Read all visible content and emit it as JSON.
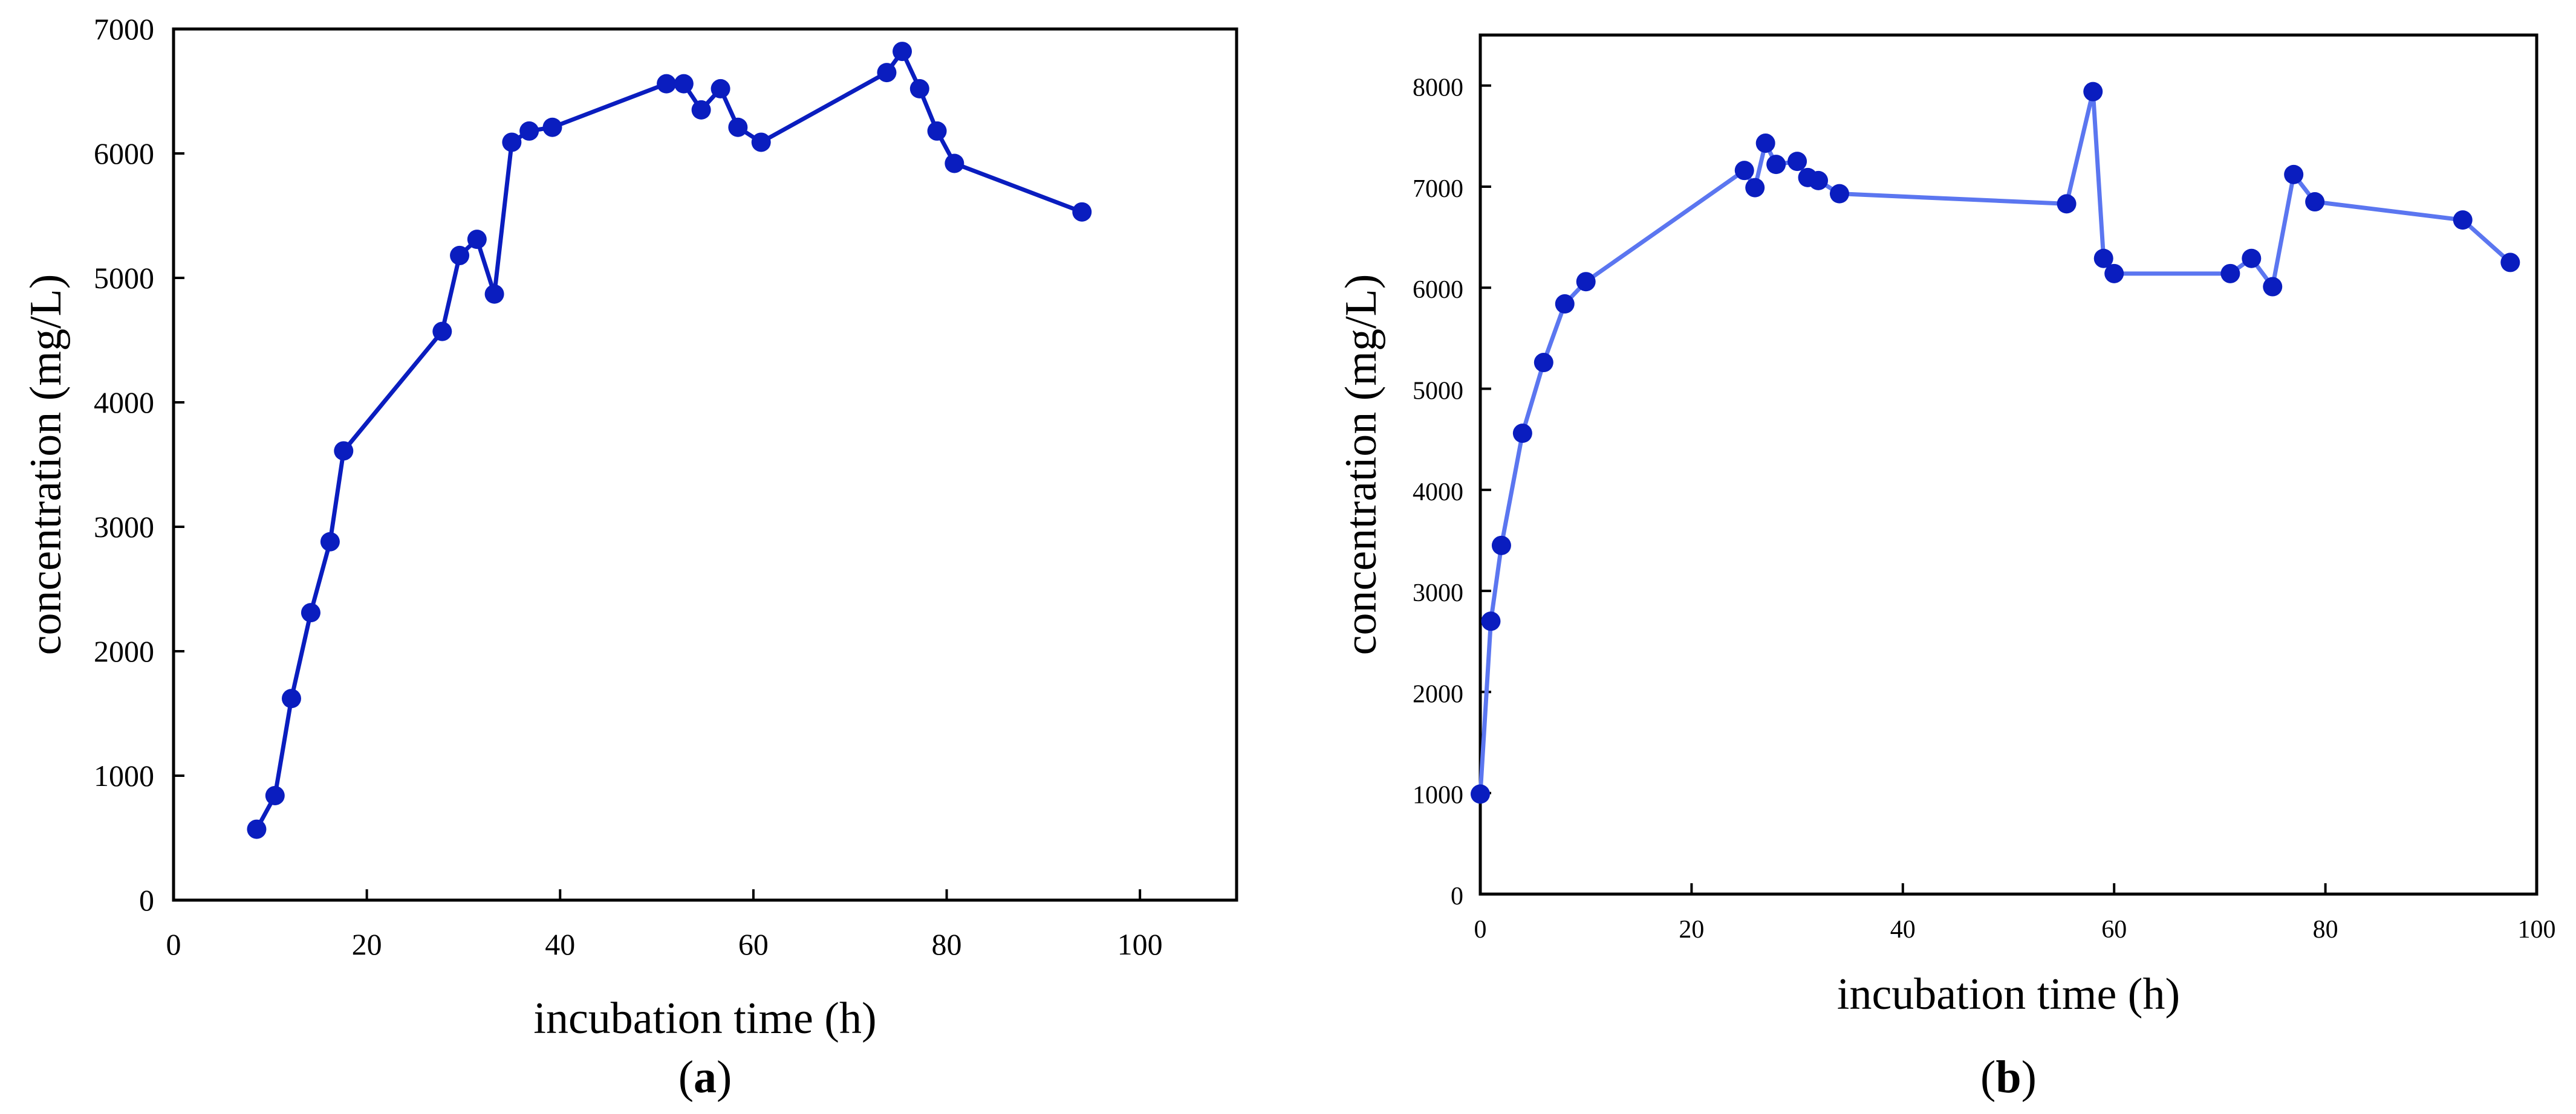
{
  "chart_data": [
    {
      "id": "a",
      "type": "line",
      "panel_label": "a",
      "title": "",
      "xlabel": "incubation time (h)",
      "ylabel": "concentration (mg/L)",
      "xlim": [
        0,
        110
      ],
      "ylim": [
        0,
        7000
      ],
      "xticks": [
        0,
        20,
        40,
        60,
        80,
        100
      ],
      "yticks": [
        0,
        1000,
        2000,
        3000,
        4000,
        5000,
        6000,
        7000
      ],
      "color": "#0a1dbf",
      "grid": false,
      "series": [
        {
          "name": "concentration",
          "x": [
            8.6,
            10.5,
            12.2,
            14.2,
            16.2,
            17.6,
            27.8,
            29.6,
            31.4,
            33.2,
            35.0,
            36.8,
            39.2,
            51.0,
            52.8,
            54.6,
            56.6,
            58.4,
            60.8,
            73.8,
            75.4,
            77.2,
            79.0,
            80.8,
            94.0
          ],
          "y": [
            570,
            840,
            1620,
            2310,
            2880,
            3610,
            4570,
            5180,
            5310,
            4870,
            6090,
            6180,
            6210,
            6560,
            6560,
            6350,
            6520,
            6210,
            6090,
            6650,
            6820,
            6520,
            6180,
            5920,
            5530
          ]
        }
      ]
    },
    {
      "id": "b",
      "type": "line",
      "panel_label": "b",
      "title": "",
      "xlabel": "incubation time (h)",
      "ylabel": "concentration (mg/L)",
      "xlim": [
        0,
        100
      ],
      "ylim": [
        0,
        8500
      ],
      "xticks": [
        0,
        20,
        40,
        60,
        80,
        100
      ],
      "yticks": [
        0,
        1000,
        2000,
        3000,
        4000,
        5000,
        6000,
        7000,
        8000
      ],
      "color": "#5b76f0",
      "marker_color": "#0a1dbf",
      "grid": false,
      "series": [
        {
          "name": "concentration",
          "x": [
            0,
            1,
            2,
            4,
            6,
            8,
            10,
            25,
            26,
            27,
            28,
            30,
            31,
            32,
            34,
            55.5,
            58,
            59,
            60,
            71,
            73,
            75,
            77,
            79,
            93,
            97.5
          ],
          "y": [
            990,
            2700,
            3450,
            4560,
            5260,
            5840,
            6060,
            7160,
            6990,
            7430,
            7220,
            7250,
            7090,
            7060,
            6930,
            6830,
            7940,
            6290,
            6140,
            6140,
            6290,
            6010,
            7120,
            6850,
            6670,
            6250
          ]
        }
      ]
    }
  ]
}
